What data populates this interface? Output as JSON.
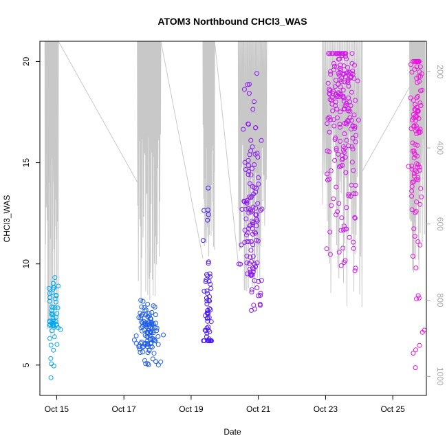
{
  "chart_data": {
    "type": "scatter",
    "title": "ATOM3 Northbound CHCl3_WAS",
    "xlabel": "Date",
    "ylabel": "CHCl3_WAS",
    "y2label": "",
    "x_ticks": [
      "Oct 15",
      "Oct 17",
      "Oct 19",
      "Oct 21",
      "Oct 23",
      "Oct 25"
    ],
    "x_tick_values": [
      0,
      2,
      4,
      6,
      8,
      10
    ],
    "x_units": "days after Oct 15",
    "xlim": [
      -0.5,
      11.0
    ],
    "ylim": [
      3.5,
      21.0
    ],
    "y_ticks": [
      5,
      10,
      15,
      20
    ],
    "y2lim": [
      1050,
      120
    ],
    "y2_ticks": [
      200,
      400,
      600,
      800,
      1000
    ],
    "y2_color": "#aaaaaa",
    "grid": false,
    "clusters": [
      {
        "x_center": -0.1,
        "x_spread": 0.15,
        "y_min": 4.0,
        "y_max": 9.5,
        "y_mode": 7.5,
        "color": "#00a8f0",
        "count": 55
      },
      {
        "x_center": 2.75,
        "x_spread": 0.35,
        "y_min": 5.0,
        "y_max": 8.2,
        "y_mode": 6.8,
        "color": "#1f5ce8",
        "count": 110
      },
      {
        "x_center": 4.5,
        "x_spread": 0.12,
        "y_min": 6.2,
        "y_max": 14.5,
        "y_mode": 7.5,
        "color": "#4a1bf0",
        "count": 60
      },
      {
        "x_center": 5.8,
        "x_spread": 0.3,
        "y_min": 7.7,
        "y_max": 19.5,
        "y_mode": 12.0,
        "color": "#8a16f0",
        "count": 120
      },
      {
        "x_center": 8.5,
        "x_spread": 0.45,
        "y_min": 9.6,
        "y_max": 20.4,
        "y_mode": 18.0,
        "color": "#d012ee",
        "count": 200
      },
      {
        "x_center": 10.7,
        "x_spread": 0.2,
        "y_min": 4.7,
        "y_max": 20.0,
        "y_mode": 17.0,
        "color": "#ee12e0",
        "count": 110
      }
    ],
    "pressure_line": {
      "color": "#c8c8c8",
      "flights": [
        {
          "x_start": -0.35,
          "x_end": 0.05,
          "p_min": 120,
          "p_max": 900
        },
        {
          "x_start": 2.4,
          "x_end": 3.1,
          "p_min": 120,
          "p_max": 810
        },
        {
          "x_start": 4.35,
          "x_end": 4.7,
          "p_min": 120,
          "p_max": 700
        },
        {
          "x_start": 5.4,
          "x_end": 6.25,
          "p_min": 120,
          "p_max": 810
        },
        {
          "x_start": 7.9,
          "x_end": 9.1,
          "p_min": 120,
          "p_max": 820
        },
        {
          "x_start": 10.5,
          "x_end": 10.95,
          "p_min": 120,
          "p_max": 740
        }
      ],
      "transits": [
        {
          "x0": 0.05,
          "p0": 120,
          "x1": 2.4,
          "p1": 490
        },
        {
          "x0": 3.1,
          "p0": 120,
          "x1": 4.35,
          "p1": 690
        },
        {
          "x0": 4.7,
          "p0": 120,
          "x1": 5.4,
          "p1": 700
        },
        {
          "x0": 6.25,
          "p0": 120,
          "x1": 7.9,
          "p1": 120
        },
        {
          "x0": 9.1,
          "p0": 460,
          "x1": 10.5,
          "p1": 240
        }
      ]
    }
  }
}
